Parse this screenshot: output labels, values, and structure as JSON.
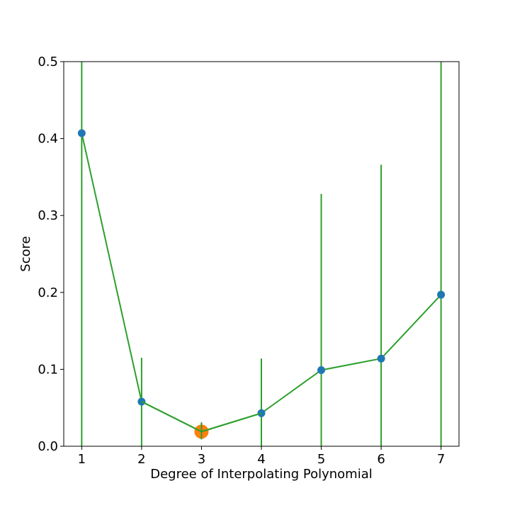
{
  "chart_data": {
    "type": "line",
    "title": "",
    "xlabel": "Degree of Interpolating Polynomial",
    "ylabel": "Score",
    "xlim": [
      0.7,
      7.3
    ],
    "ylim": [
      0.0,
      0.5
    ],
    "x_ticks": [
      "1",
      "2",
      "3",
      "4",
      "5",
      "6",
      "7"
    ],
    "y_ticks": [
      "0.0",
      "0.1",
      "0.2",
      "0.3",
      "0.4",
      "0.5"
    ],
    "grid": false,
    "series": [
      {
        "x": [
          1,
          2,
          3,
          4,
          5,
          6,
          7
        ],
        "y": [
          0.407,
          0.058,
          0.019,
          0.043,
          0.099,
          0.114,
          0.197
        ],
        "error_low": [
          0.0,
          0.0,
          0.009,
          0.0,
          0.0,
          0.0,
          0.0
        ],
        "error_high": [
          0.5,
          0.115,
          0.031,
          0.114,
          0.328,
          0.366,
          0.5
        ]
      }
    ],
    "highlight": {
      "x": 3,
      "y": 0.019
    },
    "colors": {
      "line": "#2ca02c",
      "marker": "#1f77b4",
      "highlight": "#ff7f0e",
      "errorbar": "#2ca02c"
    }
  }
}
